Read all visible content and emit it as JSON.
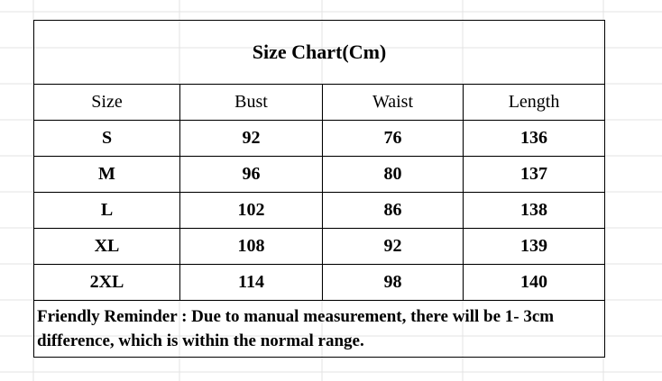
{
  "table": {
    "title": "Size Chart(Cm)",
    "header": [
      "Size",
      "Bust",
      "Waist",
      "Length"
    ],
    "rows": [
      [
        "S",
        92,
        76,
        136
      ],
      [
        "M",
        96,
        80,
        137
      ],
      [
        "L",
        102,
        86,
        138
      ],
      [
        "XL",
        108,
        92,
        139
      ],
      [
        "2XL",
        114,
        98,
        140
      ]
    ],
    "note": "Friendly Reminder : Due to manual measurement, there will be 1- 3cm difference, which is within the normal range."
  }
}
